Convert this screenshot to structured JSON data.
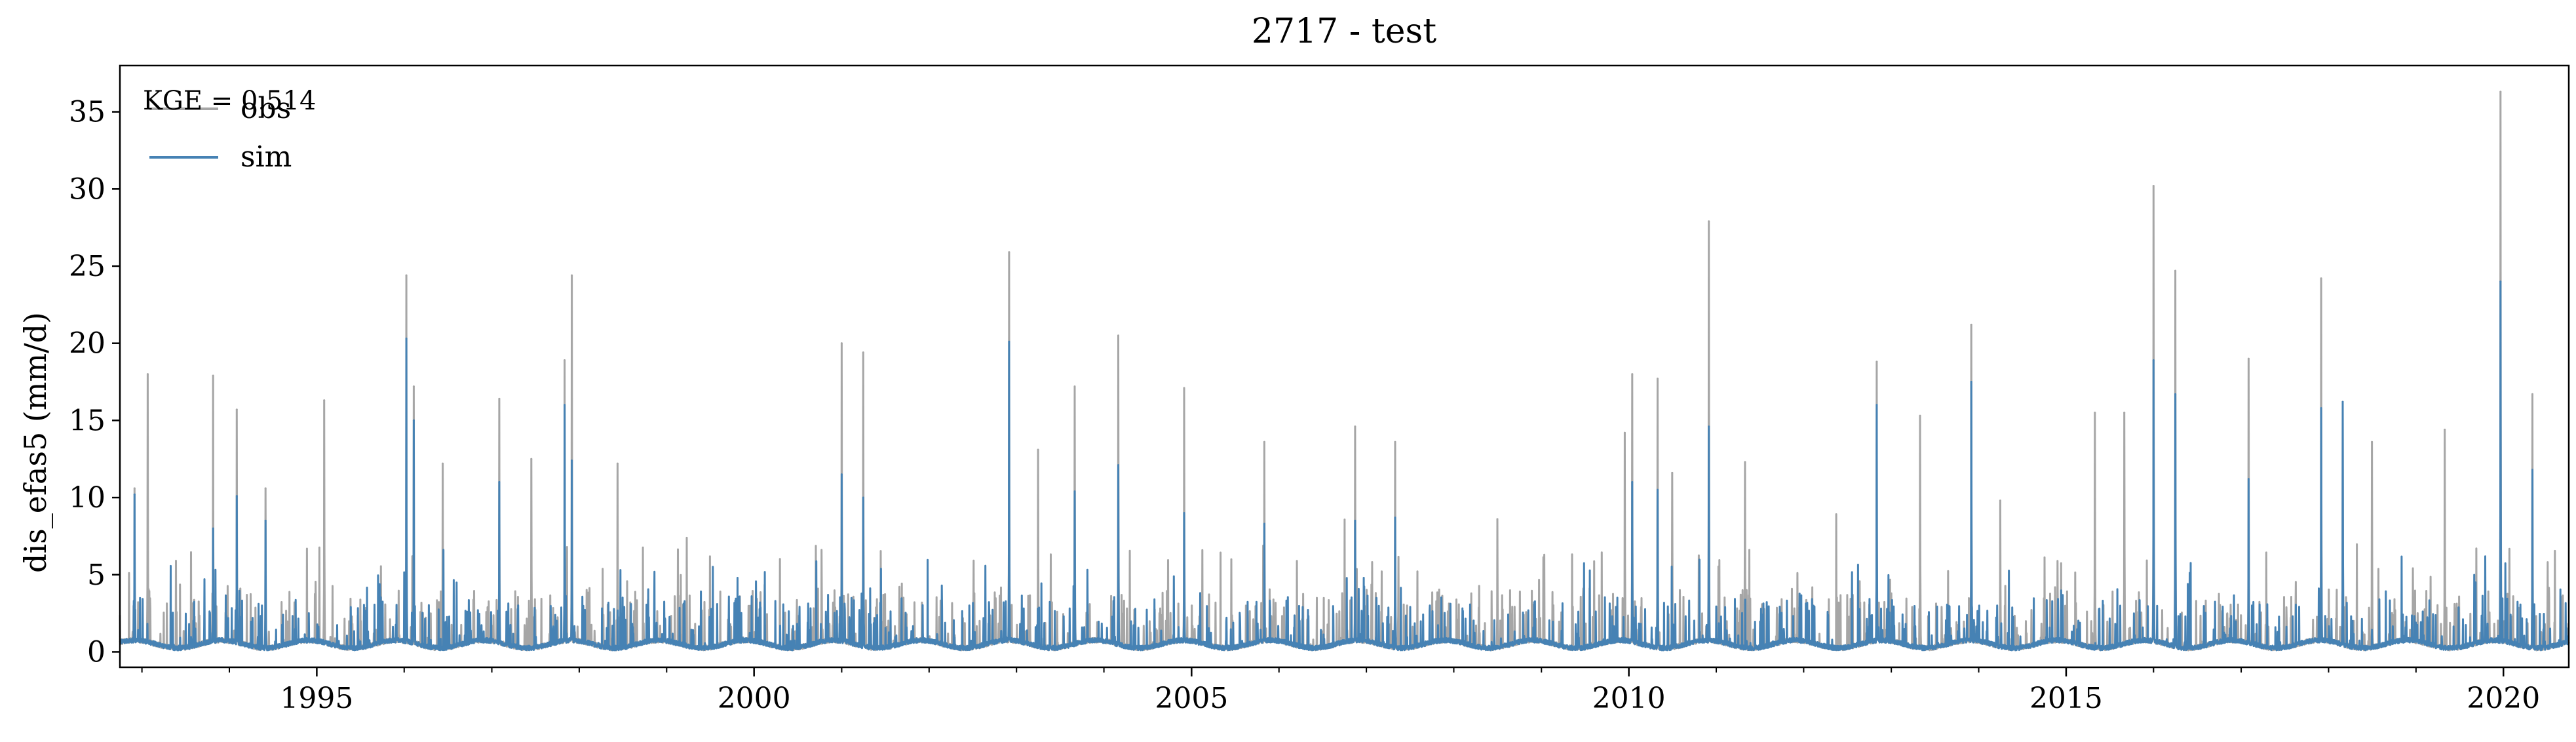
{
  "chart_data": {
    "type": "line",
    "title": "2717 - test",
    "xlabel": "",
    "ylabel": "dis_efas5 (mm/d)",
    "xlim": [
      "1992-10-01",
      "2020-09-30"
    ],
    "ylim": [
      -1,
      38
    ],
    "x_ticks": [
      "1995",
      "2000",
      "2005",
      "2010",
      "2015",
      "2020"
    ],
    "y_ticks": [
      "0",
      "5",
      "10",
      "15",
      "20",
      "25",
      "30",
      "35"
    ],
    "legend_position": "top-left",
    "annotation": "KGE = 0.514",
    "series": [
      {
        "name": "obs",
        "color": "#a6a6a6",
        "peaks": [
          [
            "1992-12-01",
            10.6
          ],
          [
            "1993-01-25",
            18.0
          ],
          [
            "1993-10-25",
            17.9
          ],
          [
            "1994-02-01",
            15.7
          ],
          [
            "1994-06-01",
            10.6
          ],
          [
            "1995-02-01",
            16.3
          ],
          [
            "1996-01-10",
            24.4
          ],
          [
            "1996-02-10",
            17.2
          ],
          [
            "1996-06-10",
            12.2
          ],
          [
            "1997-02-01",
            16.4
          ],
          [
            "1997-06-15",
            12.5
          ],
          [
            "1997-11-01",
            18.9
          ],
          [
            "1997-12-01",
            24.4
          ],
          [
            "1998-06-10",
            12.2
          ],
          [
            "2001-01-01",
            20.0
          ],
          [
            "2001-04-01",
            19.4
          ],
          [
            "2002-12-01",
            25.9
          ],
          [
            "2003-04-01",
            13.1
          ],
          [
            "2003-09-01",
            17.2
          ],
          [
            "2004-03-01",
            20.5
          ],
          [
            "2004-12-01",
            17.1
          ],
          [
            "2005-11-01",
            13.6
          ],
          [
            "2006-11-15",
            14.6
          ],
          [
            "2007-05-01",
            13.6
          ],
          [
            "2008-07-01",
            8.6
          ],
          [
            "2009-12-15",
            14.2
          ],
          [
            "2010-01-15",
            18.0
          ],
          [
            "2010-05-01",
            17.7
          ],
          [
            "2010-07-01",
            11.6
          ],
          [
            "2010-12-01",
            27.9
          ],
          [
            "2011-05-01",
            12.3
          ],
          [
            "2012-11-01",
            18.8
          ],
          [
            "2013-05-01",
            15.3
          ],
          [
            "2013-12-01",
            21.2
          ],
          [
            "2014-04-01",
            9.8
          ],
          [
            "2015-05-01",
            15.5
          ],
          [
            "2015-09-01",
            15.5
          ],
          [
            "2016-01-01",
            30.2
          ],
          [
            "2016-04-01",
            24.7
          ],
          [
            "2017-02-01",
            19.0
          ],
          [
            "2017-12-01",
            24.2
          ],
          [
            "2018-03-01",
            16.2
          ],
          [
            "2018-07-01",
            13.6
          ],
          [
            "2019-05-01",
            14.4
          ],
          [
            "2019-12-20",
            36.3
          ],
          [
            "2020-05-01",
            16.7
          ]
        ]
      },
      {
        "name": "sim",
        "color": "#4682b4",
        "peaks": [
          [
            "1992-12-01",
            10.2
          ],
          [
            "1993-10-25",
            8.0
          ],
          [
            "1994-02-01",
            10.1
          ],
          [
            "1994-06-01",
            8.5
          ],
          [
            "1996-01-10",
            20.3
          ],
          [
            "1996-02-10",
            15.0
          ],
          [
            "1997-02-01",
            11.0
          ],
          [
            "1997-11-01",
            16.0
          ],
          [
            "1997-12-01",
            12.4
          ],
          [
            "2001-01-01",
            11.5
          ],
          [
            "2001-04-01",
            10.0
          ],
          [
            "2002-12-01",
            20.1
          ],
          [
            "2003-09-01",
            10.4
          ],
          [
            "2004-03-01",
            12.1
          ],
          [
            "2004-12-01",
            9.0
          ],
          [
            "2005-11-01",
            8.3
          ],
          [
            "2006-11-15",
            8.5
          ],
          [
            "2007-05-01",
            8.7
          ],
          [
            "2010-01-15",
            11.0
          ],
          [
            "2010-05-01",
            10.5
          ],
          [
            "2010-12-01",
            14.6
          ],
          [
            "2012-11-01",
            16.0
          ],
          [
            "2013-12-01",
            17.5
          ],
          [
            "2016-01-01",
            18.9
          ],
          [
            "2016-04-01",
            16.7
          ],
          [
            "2017-02-01",
            11.2
          ],
          [
            "2017-12-01",
            15.8
          ],
          [
            "2018-03-01",
            16.2
          ],
          [
            "2019-12-20",
            24.0
          ],
          [
            "2020-05-01",
            11.8
          ]
        ]
      }
    ]
  }
}
